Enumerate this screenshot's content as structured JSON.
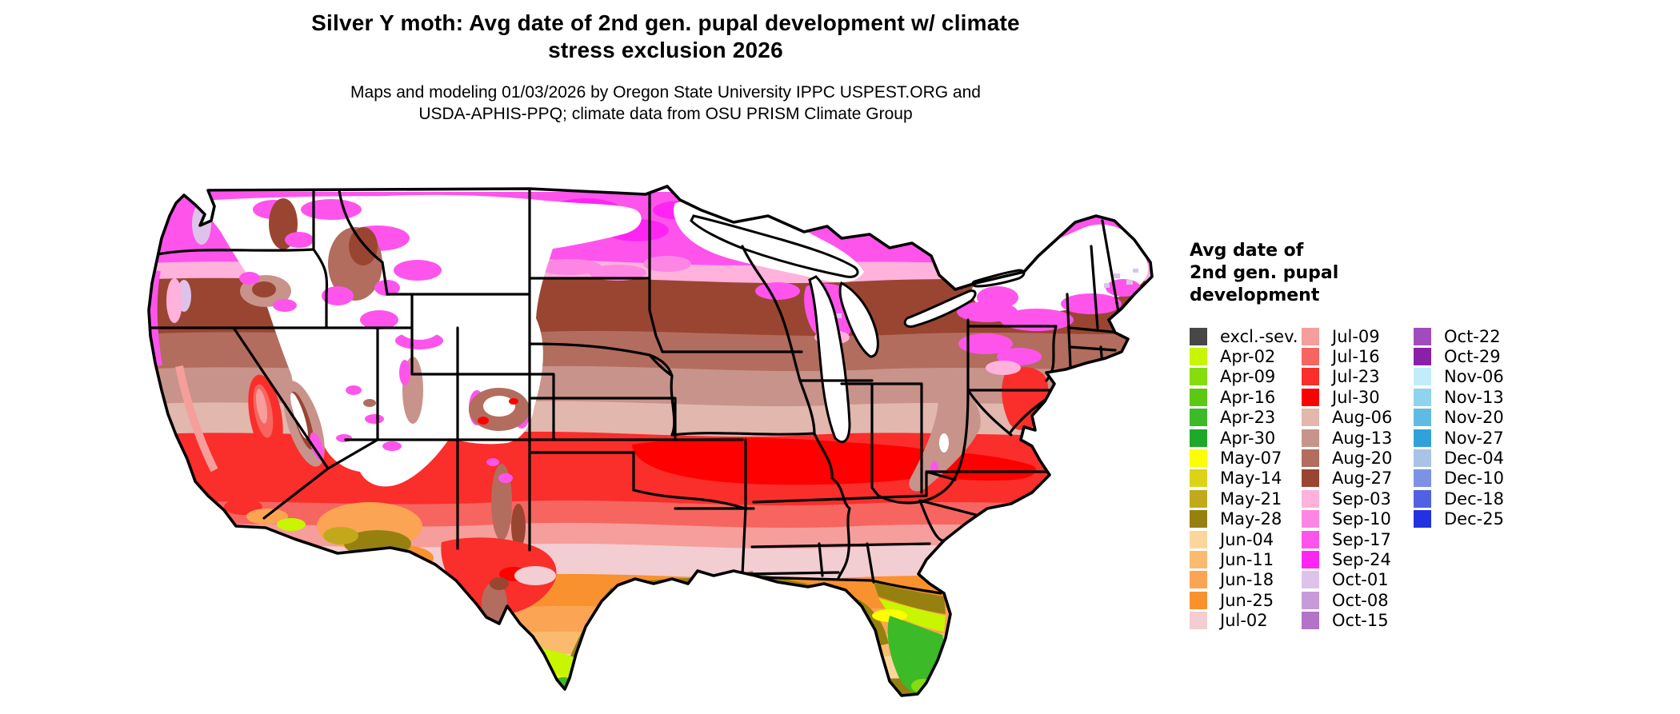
{
  "title": {
    "line1": "Silver Y moth: Avg date of 2nd gen. pupal development w/ climate",
    "line2": "stress exclusion 2026"
  },
  "subtitle": {
    "line1": "Maps and modeling 01/03/2026 by Oregon State University IPPC USPEST.ORG and",
    "line2": "USDA-APHIS-PPQ; climate data from OSU PRISM Climate Group"
  },
  "legend": {
    "title_lines": [
      "Avg date of",
      "2nd gen. pupal",
      "development"
    ],
    "columns": [
      [
        {
          "label": "excl.-sev.",
          "color": "#474747"
        },
        {
          "label": "Apr-02",
          "color": "#c8f500"
        },
        {
          "label": "Apr-09",
          "color": "#86dc0e"
        },
        {
          "label": "Apr-16",
          "color": "#5cc812"
        },
        {
          "label": "Apr-23",
          "color": "#3cba28"
        },
        {
          "label": "Apr-30",
          "color": "#1ea929"
        },
        {
          "label": "May-07",
          "color": "#fdfe00"
        },
        {
          "label": "May-14",
          "color": "#dcd317"
        },
        {
          "label": "May-21",
          "color": "#c2a91b"
        },
        {
          "label": "May-28",
          "color": "#968110"
        },
        {
          "label": "Jun-04",
          "color": "#fbd69c"
        },
        {
          "label": "Jun-11",
          "color": "#fbbb6e"
        },
        {
          "label": "Jun-18",
          "color": "#fba453"
        },
        {
          "label": "Jun-25",
          "color": "#f9912f"
        },
        {
          "label": "Jul-02",
          "color": "#f2cdd1"
        }
      ],
      [
        {
          "label": "Jul-09",
          "color": "#f59e9b"
        },
        {
          "label": "Jul-16",
          "color": "#f76560"
        },
        {
          "label": "Jul-23",
          "color": "#fa2e2b"
        },
        {
          "label": "Jul-30",
          "color": "#fe0000"
        },
        {
          "label": "Aug-06",
          "color": "#e2b7ae"
        },
        {
          "label": "Aug-13",
          "color": "#c8938a"
        },
        {
          "label": "Aug-20",
          "color": "#b26d5e"
        },
        {
          "label": "Aug-27",
          "color": "#9a4531"
        },
        {
          "label": "Sep-03",
          "color": "#feb2dc"
        },
        {
          "label": "Sep-10",
          "color": "#fd86e4"
        },
        {
          "label": "Sep-17",
          "color": "#fe54ec"
        },
        {
          "label": "Sep-24",
          "color": "#fe25f3"
        },
        {
          "label": "Oct-01",
          "color": "#ddc3e9"
        },
        {
          "label": "Oct-08",
          "color": "#c79bd8"
        },
        {
          "label": "Oct-15",
          "color": "#b273c8"
        }
      ],
      [
        {
          "label": "Oct-22",
          "color": "#a04cbc"
        },
        {
          "label": "Oct-29",
          "color": "#8b20a8"
        },
        {
          "label": "Nov-06",
          "color": "#c2ecf9"
        },
        {
          "label": "Nov-13",
          "color": "#90d3ee"
        },
        {
          "label": "Nov-20",
          "color": "#60bbe4"
        },
        {
          "label": "Nov-27",
          "color": "#2fa2d9"
        },
        {
          "label": "Dec-04",
          "color": "#a9c3e5"
        },
        {
          "label": "Dec-10",
          "color": "#7c92e3"
        },
        {
          "label": "Dec-18",
          "color": "#5062e1"
        },
        {
          "label": "Dec-25",
          "color": "#2332e0"
        }
      ]
    ]
  },
  "palette": {
    "white": "#ffffff",
    "black": "#000000",
    "Apr02": "#c8f500",
    "Apr09": "#86dc0e",
    "Apr23": "#3cba28",
    "May07": "#fdfe00",
    "May21": "#c2a91b",
    "May28": "#968110",
    "Jun04": "#fbd69c",
    "Jun11": "#fbbb6e",
    "Jun18": "#fba453",
    "Jun25": "#f9912f",
    "Jul02": "#f2cdd1",
    "Jul09": "#f59e9b",
    "Jul16": "#f76560",
    "Jul23": "#fa2e2b",
    "Jul30": "#fe0000",
    "Aug06": "#e2b7ae",
    "Aug13": "#c8938a",
    "Aug20": "#b26d5e",
    "Aug27": "#9a4531",
    "Sep03": "#feb2dc",
    "Sep10": "#fd86e4",
    "Sep17": "#fe54ec",
    "Sep24": "#fe25f3",
    "Oct01": "#ddc3e9"
  }
}
